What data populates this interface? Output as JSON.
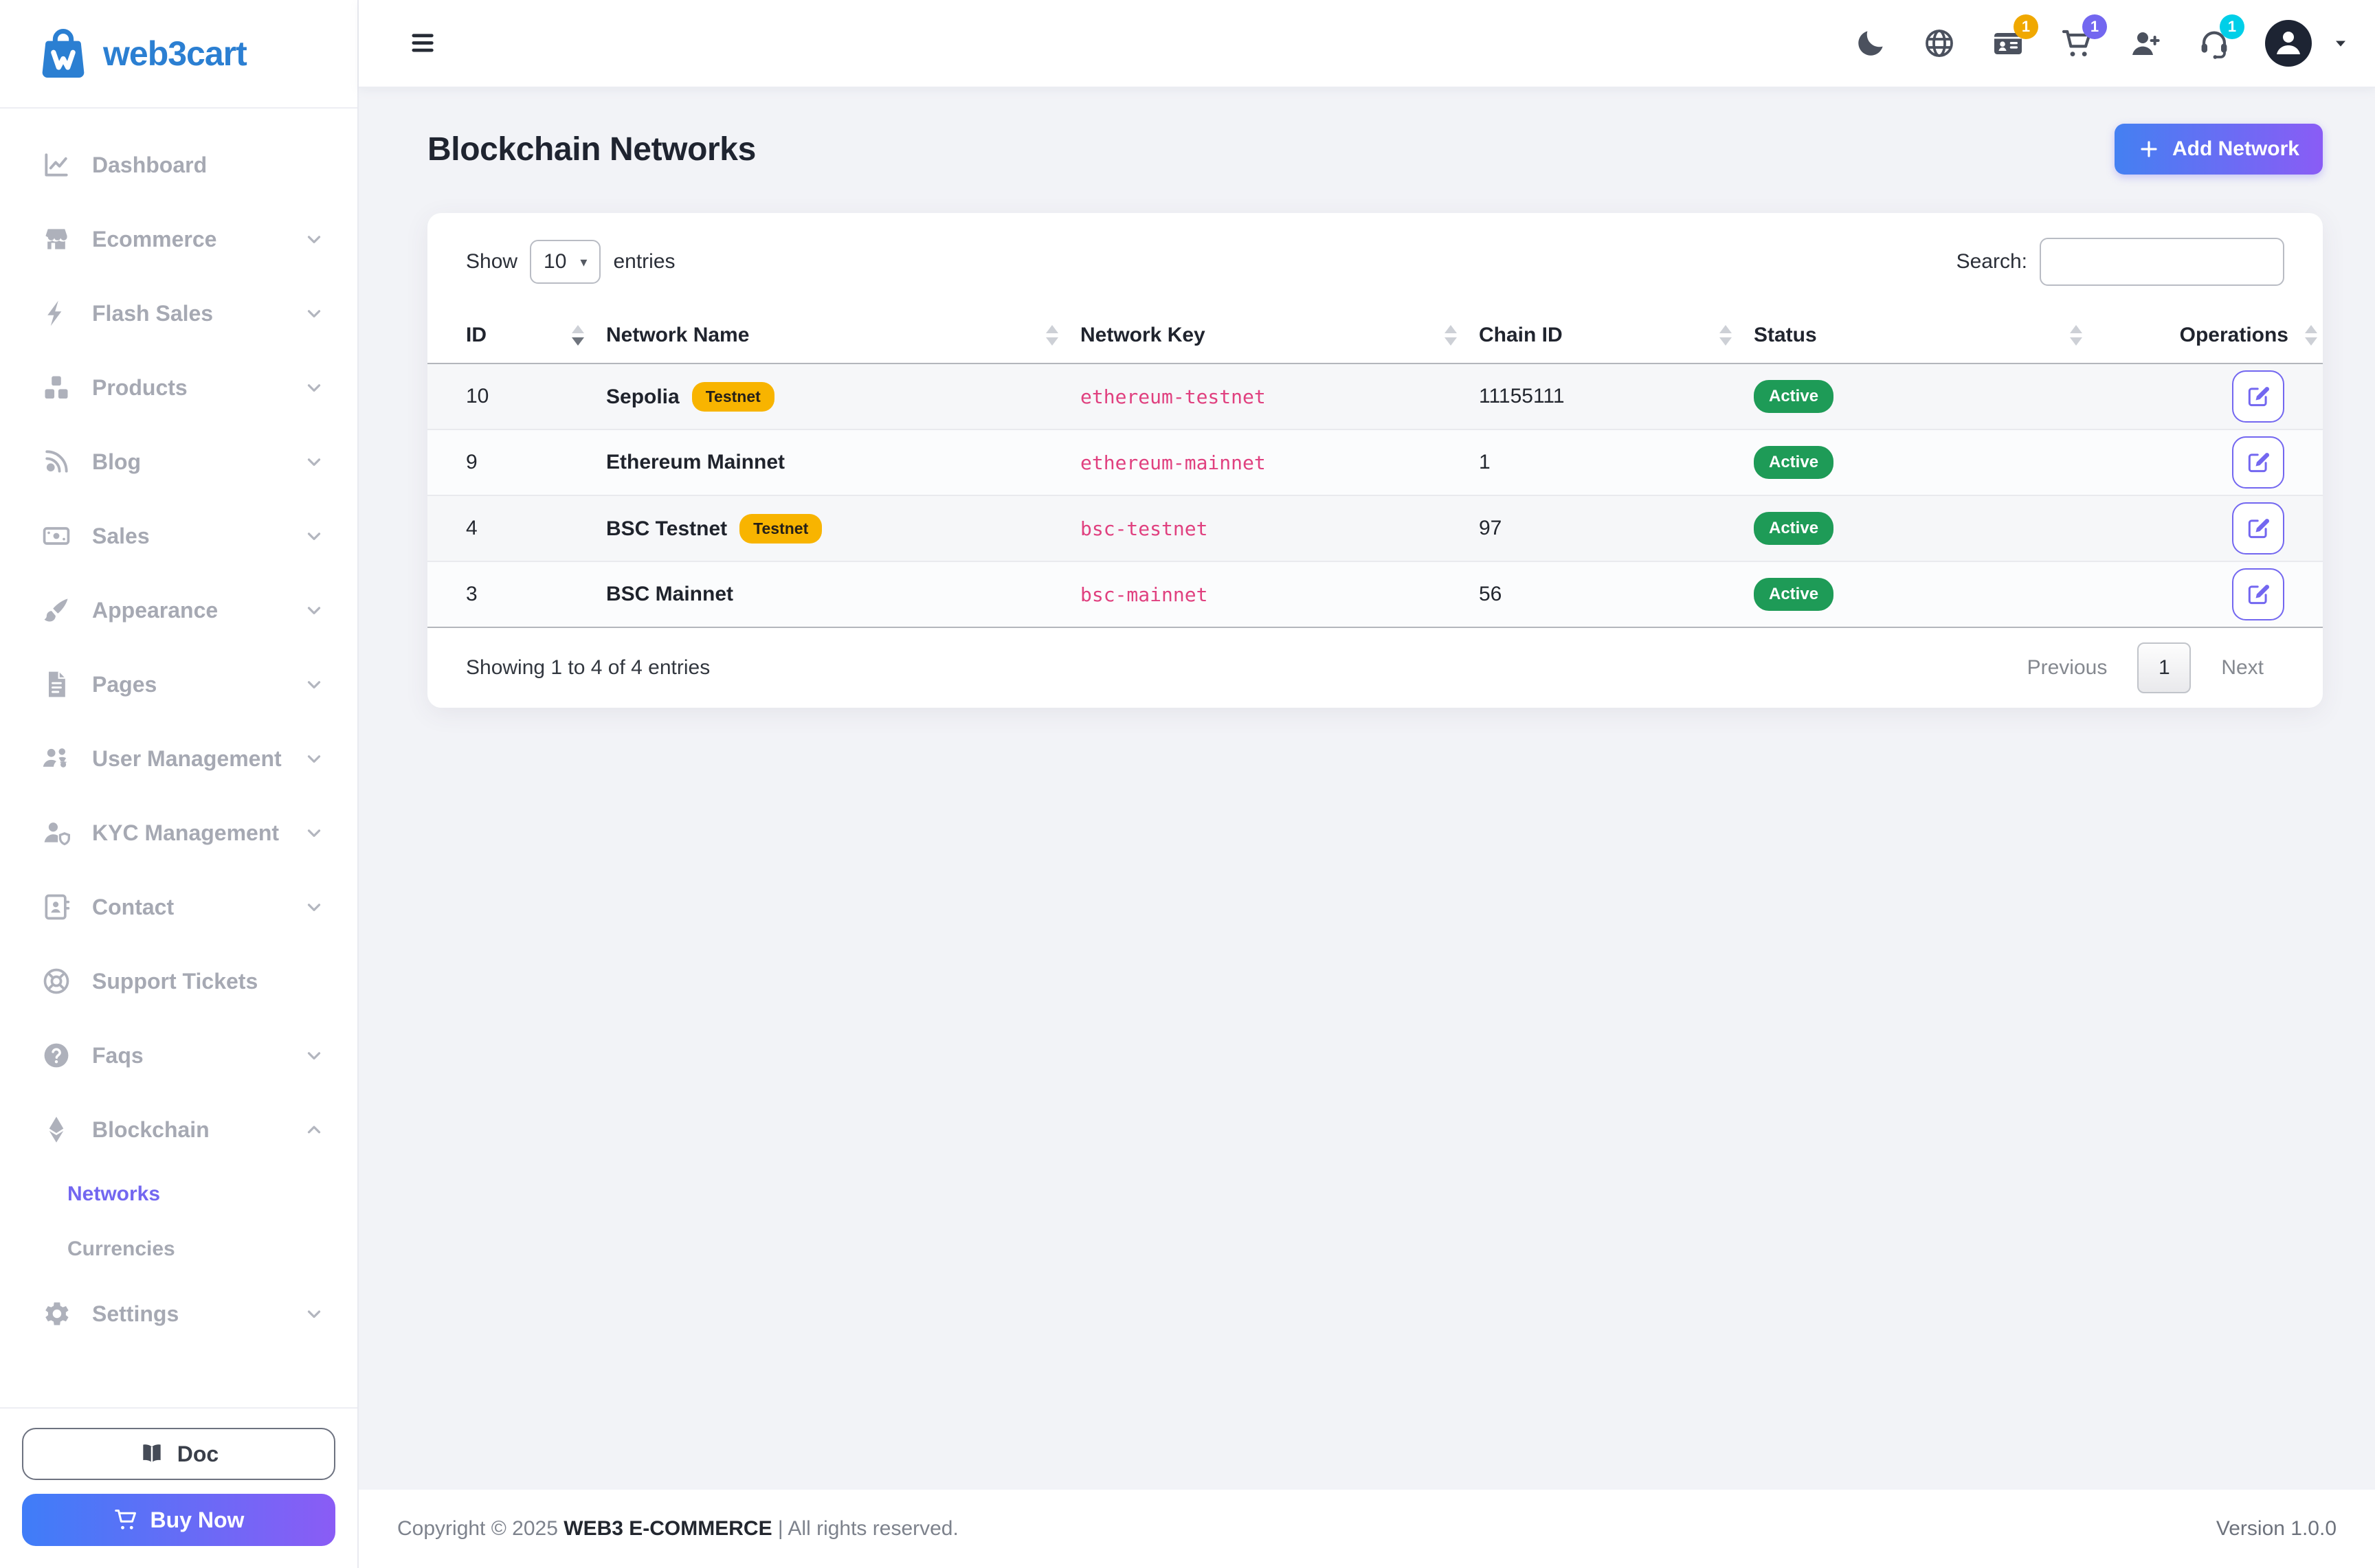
{
  "brand": {
    "name": "web3cart",
    "logo_icon": "shopping-bag-logo-icon"
  },
  "sidebar": {
    "items": [
      {
        "label": "Dashboard",
        "icon": "chart-line-icon",
        "chevron": null
      },
      {
        "label": "Ecommerce",
        "icon": "store-icon",
        "chevron": "down"
      },
      {
        "label": "Flash Sales",
        "icon": "bolt-icon",
        "chevron": "down"
      },
      {
        "label": "Products",
        "icon": "cubes-icon",
        "chevron": "down"
      },
      {
        "label": "Blog",
        "icon": "blog-icon",
        "chevron": "down"
      },
      {
        "label": "Sales",
        "icon": "money-bill-icon",
        "chevron": "down"
      },
      {
        "label": "Appearance",
        "icon": "paintbrush-icon",
        "chevron": "down"
      },
      {
        "label": "Pages",
        "icon": "file-lines-icon",
        "chevron": "down"
      },
      {
        "label": "User Management",
        "icon": "users-gear-icon",
        "chevron": "down"
      },
      {
        "label": "KYC Management",
        "icon": "user-shield-icon",
        "chevron": "down"
      },
      {
        "label": "Contact",
        "icon": "address-book-icon",
        "chevron": "down"
      },
      {
        "label": "Support Tickets",
        "icon": "life-ring-icon",
        "chevron": null
      },
      {
        "label": "Faqs",
        "icon": "circle-question-icon",
        "chevron": "down"
      },
      {
        "label": "Blockchain",
        "icon": "ethereum-icon",
        "chevron": "up",
        "expanded": true,
        "children": [
          {
            "label": "Networks",
            "active": true
          },
          {
            "label": "Currencies",
            "active": false
          }
        ]
      },
      {
        "label": "Settings",
        "icon": "gear-icon",
        "chevron": "down"
      }
    ],
    "doc_button": {
      "label": "Doc",
      "icon": "book-icon"
    },
    "buy_button": {
      "label": "Buy Now",
      "icon": "cart-icon"
    }
  },
  "topbar": {
    "menu_icon": "hamburger-icon",
    "icons": [
      {
        "name": "moon-icon",
        "badge": null,
        "badge_color": null
      },
      {
        "name": "globe-icon",
        "badge": null,
        "badge_color": null
      },
      {
        "name": "id-card-icon",
        "badge": "1",
        "badge_color": "#f0a800"
      },
      {
        "name": "cart-icon",
        "badge": "1",
        "badge_color": "#7367f0"
      },
      {
        "name": "user-plus-icon",
        "badge": null,
        "badge_color": null
      },
      {
        "name": "headset-icon",
        "badge": "1",
        "badge_color": "#00cfe8"
      }
    ],
    "avatar_icon": "user-avatar-icon",
    "caret_icon": "caret-down-icon"
  },
  "page": {
    "title": "Blockchain Networks",
    "add_button_label": "Add Network"
  },
  "table": {
    "show_label": "Show",
    "per_page": "10",
    "entries_label": "entries",
    "search_label": "Search:",
    "search_value": "",
    "columns": [
      "ID",
      "Network Name",
      "Network Key",
      "Chain ID",
      "Status",
      "Operations"
    ],
    "sorted_column": "ID",
    "sort_direction": "desc",
    "rows": [
      {
        "id": "10",
        "name": "Sepolia",
        "tag": "Testnet",
        "key": "ethereum-testnet",
        "chain_id": "11155111",
        "status": "Active"
      },
      {
        "id": "9",
        "name": "Ethereum Mainnet",
        "tag": null,
        "key": "ethereum-mainnet",
        "chain_id": "1",
        "status": "Active"
      },
      {
        "id": "4",
        "name": "BSC Testnet",
        "tag": "Testnet",
        "key": "bsc-testnet",
        "chain_id": "97",
        "status": "Active"
      },
      {
        "id": "3",
        "name": "BSC Mainnet",
        "tag": null,
        "key": "bsc-mainnet",
        "chain_id": "56",
        "status": "Active"
      }
    ],
    "summary": "Showing 1 to 4 of 4 entries",
    "pagination": {
      "previous": "Previous",
      "page": "1",
      "next": "Next"
    }
  },
  "footer": {
    "copyright_prefix": "Copyright © 2025 ",
    "brand": "WEB3 E-COMMERCE",
    "copyright_suffix": " | All rights reserved.",
    "version": "Version 1.0.0"
  },
  "colors": {
    "accent_gradient_start": "#3f7df8",
    "accent_gradient_end": "#8a5cf5",
    "brand_blue": "#2b7fd2",
    "active_link_purple": "#7367f0",
    "status_green": "#1e9b57",
    "testnet_yellow": "#f8b400",
    "network_key_pink": "#e0407f",
    "badge_yellow": "#f0a800",
    "badge_purple": "#7367f0",
    "badge_cyan": "#00cfe8"
  }
}
